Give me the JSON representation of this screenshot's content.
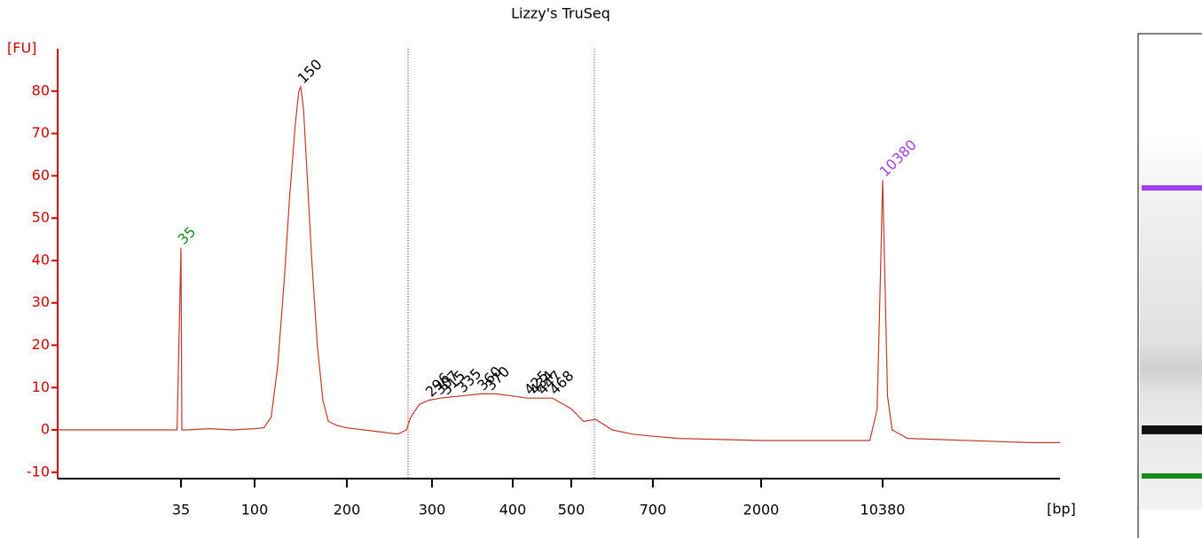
{
  "chart_data": {
    "type": "line",
    "title": "Lizzy's TruSeq",
    "ylabel": "[FU]",
    "xlabel": "[bp]",
    "x": [
      10,
      30,
      34.2,
      35,
      35.8,
      40,
      60,
      80,
      100,
      110,
      118,
      125,
      132,
      138,
      144,
      148,
      150,
      153,
      157,
      162,
      168,
      174,
      180,
      190,
      200,
      240,
      260,
      270,
      275,
      285,
      296,
      310,
      335,
      360,
      380,
      400,
      425,
      447,
      468,
      500,
      530,
      560,
      600,
      650,
      700,
      1000,
      2000,
      5000,
      9500,
      10000,
      10250,
      10380,
      10500,
      10700,
      11000,
      12000,
      20000,
      22000
    ],
    "series": [
      {
        "color": "#c0392b",
        "values": [
          0,
          0,
          0,
          43,
          0,
          0,
          0.3,
          0,
          0.3,
          0.5,
          3,
          15,
          35,
          55,
          72,
          80,
          81,
          76,
          60,
          40,
          20,
          7,
          2,
          1,
          0.5,
          -0.5,
          -1,
          0,
          3,
          6,
          7,
          7.5,
          8,
          8.5,
          8.5,
          8,
          7.5,
          7.5,
          7.5,
          5,
          2,
          2.5,
          0,
          -1,
          -1.5,
          -2,
          -2.5,
          -2.5,
          -2.5,
          5,
          40,
          59,
          40,
          8,
          0,
          -2,
          -3,
          -3
        ]
      }
    ],
    "xlim": [
      10,
      22000
    ],
    "xticks": [
      35,
      100,
      200,
      300,
      400,
      500,
      700,
      2000,
      10380
    ],
    "ylim": [
      -11.5,
      90
    ],
    "yticks": [
      -10,
      0,
      10,
      20,
      30,
      40,
      50,
      60,
      70,
      80
    ],
    "axis_color": "#cc0000",
    "annotations": [
      {
        "text": "35",
        "x": 35,
        "y": 43,
        "color": "#1a8a1a"
      },
      {
        "text": "150",
        "x": 150,
        "y": 81,
        "color": "#000000"
      },
      {
        "text": "296",
        "x": 296,
        "y": 7,
        "color": "#000000"
      },
      {
        "text": "307",
        "x": 307,
        "y": 7.5,
        "color": "#000000"
      },
      {
        "text": "315",
        "x": 315,
        "y": 7.5,
        "color": "#000000"
      },
      {
        "text": "335",
        "x": 335,
        "y": 8,
        "color": "#000000"
      },
      {
        "text": "360",
        "x": 360,
        "y": 8.5,
        "color": "#000000"
      },
      {
        "text": "370",
        "x": 370,
        "y": 8.5,
        "color": "#000000"
      },
      {
        "text": "425",
        "x": 425,
        "y": 7.5,
        "color": "#000000"
      },
      {
        "text": "434",
        "x": 434,
        "y": 7.5,
        "color": "#000000"
      },
      {
        "text": "447",
        "x": 447,
        "y": 7.5,
        "color": "#000000"
      },
      {
        "text": "468",
        "x": 468,
        "y": 7.5,
        "color": "#000000"
      },
      {
        "text": "10380",
        "x": 10380,
        "y": 59,
        "color": "#a040f0"
      }
    ]
  }
}
